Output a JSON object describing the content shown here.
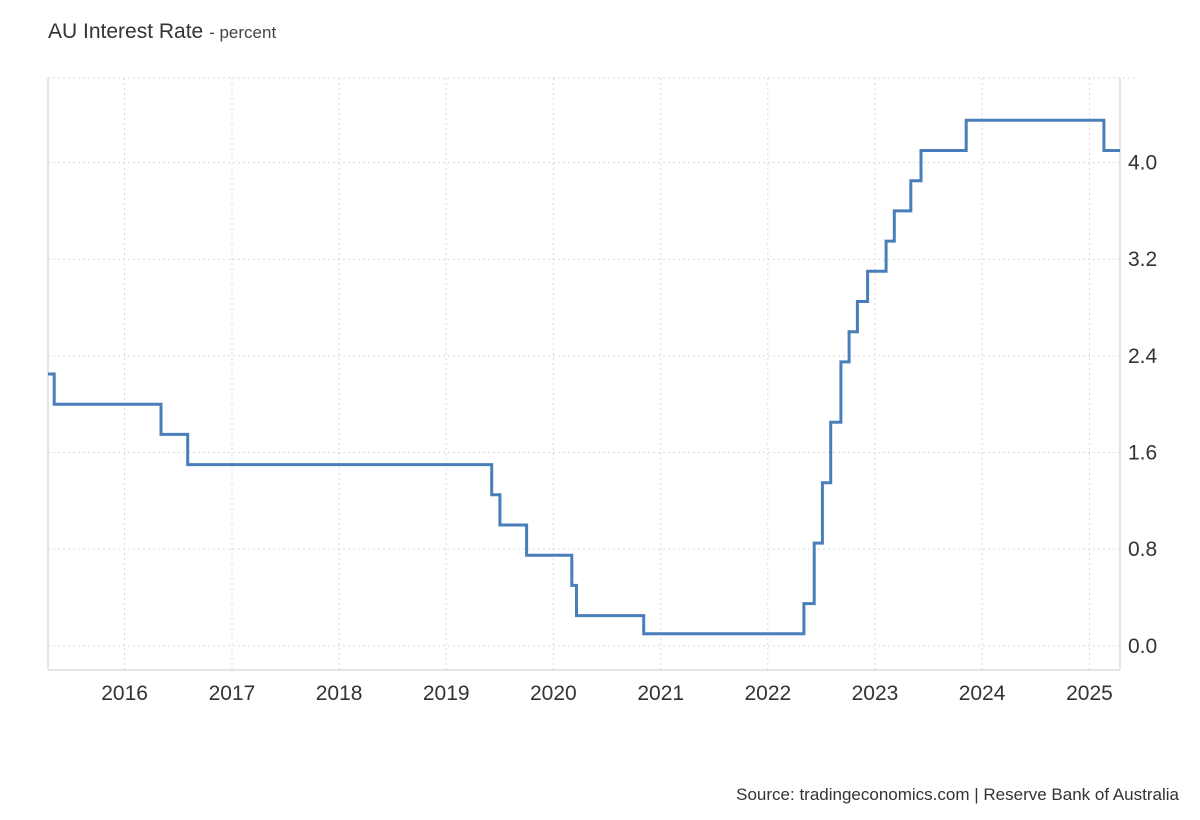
{
  "header": {
    "title": "AU Interest Rate",
    "subtitle": "- percent"
  },
  "footer": {
    "source": "Source: tradingeconomics.com | Reserve Bank of Australia"
  },
  "colors": {
    "line": "#4a7ebb",
    "grid": "#d9d9d9",
    "axis": "#cccccc",
    "text": "#333333"
  },
  "chart_data": {
    "type": "line",
    "step": true,
    "title": "AU Interest Rate",
    "subtitle": "percent",
    "xlabel": "",
    "ylabel": "",
    "y_axis_position": "right",
    "grid": true,
    "xlim": [
      "2015-04-15",
      "2025-04-15"
    ],
    "ylim": [
      -0.2,
      4.7
    ],
    "x_ticks": [
      "2016",
      "2017",
      "2018",
      "2019",
      "2020",
      "2021",
      "2022",
      "2023",
      "2024",
      "2025"
    ],
    "y_ticks": [
      0.0,
      0.8,
      1.6,
      2.4,
      3.2,
      4.0
    ],
    "y_tick_labels": [
      "0.0",
      "0.8",
      "1.6",
      "2.4",
      "3.2",
      "4.0"
    ],
    "series": [
      {
        "points": [
          [
            "2015-04-15",
            2.25
          ],
          [
            "2015-05-06",
            2.0
          ],
          [
            "2016-05-04",
            1.75
          ],
          [
            "2016-08-03",
            1.5
          ],
          [
            "2019-06-05",
            1.25
          ],
          [
            "2019-07-03",
            1.0
          ],
          [
            "2019-10-02",
            0.75
          ],
          [
            "2020-03-04",
            0.5
          ],
          [
            "2020-03-20",
            0.25
          ],
          [
            "2020-11-04",
            0.1
          ],
          [
            "2022-05-04",
            0.35
          ],
          [
            "2022-06-08",
            0.85
          ],
          [
            "2022-07-06",
            1.35
          ],
          [
            "2022-08-03",
            1.85
          ],
          [
            "2022-09-07",
            2.35
          ],
          [
            "2022-10-05",
            2.6
          ],
          [
            "2022-11-02",
            2.85
          ],
          [
            "2022-12-07",
            3.1
          ],
          [
            "2023-02-08",
            3.35
          ],
          [
            "2023-03-08",
            3.6
          ],
          [
            "2023-05-03",
            3.85
          ],
          [
            "2023-06-07",
            4.1
          ],
          [
            "2023-11-08",
            4.35
          ],
          [
            "2025-02-19",
            4.1
          ],
          [
            "2025-04-15",
            4.1
          ]
        ]
      }
    ]
  }
}
